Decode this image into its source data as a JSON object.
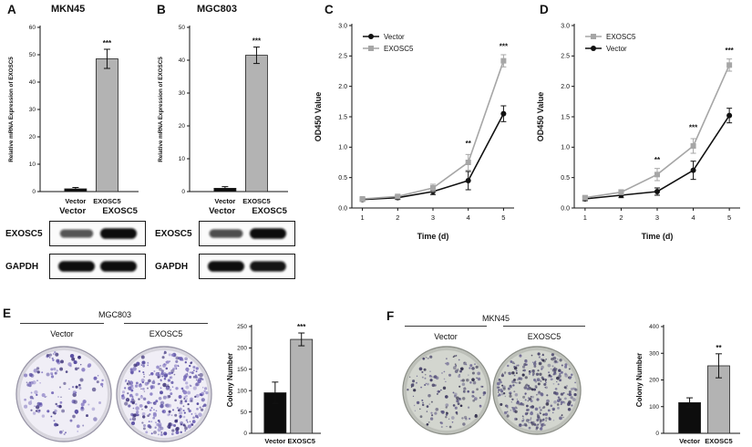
{
  "figure": {
    "panels": {
      "A": {
        "letter": "A",
        "title": "MKN45"
      },
      "B": {
        "letter": "B",
        "title": "MGC803"
      },
      "C": {
        "letter": "C"
      },
      "D": {
        "letter": "D"
      },
      "E": {
        "letter": "E"
      },
      "F": {
        "letter": "F"
      }
    },
    "blots": {
      "lane_labels": [
        "Vector",
        "EXOSC5"
      ],
      "row_labels": [
        "EXOSC5",
        "GAPDH"
      ],
      "bands": {
        "A": [
          [
            0.55,
            1.0
          ],
          [
            1.0,
            1.0
          ]
        ],
        "B": [
          [
            0.6,
            1.0
          ],
          [
            1.0,
            0.95
          ]
        ]
      }
    },
    "colony": {
      "E": {
        "cell_line": "MGC803",
        "dishes": [
          {
            "label": "Vector",
            "dot_count": 130
          },
          {
            "label": "EXOSC5",
            "dot_count": 330
          }
        ],
        "base": "#f0eef6",
        "edge": "#9a97a8",
        "dot_colors": [
          "#5a4fa2",
          "#6f63b5",
          "#43397d",
          "#8d82c6"
        ]
      },
      "F": {
        "cell_line": "MKN45",
        "dishes": [
          {
            "label": "Vector",
            "dot_count": 160
          },
          {
            "label": "EXOSC5",
            "dot_count": 340
          }
        ],
        "base": "#d3d6cf",
        "edge": "#8d9089",
        "dot_colors": [
          "#4a466b",
          "#5a5580",
          "#36334f",
          "#6d6893"
        ]
      }
    }
  },
  "chart_data": [
    {
      "id": "A",
      "type": "bar",
      "title": "MKN45",
      "categories": [
        "Vector",
        "EXOSC5"
      ],
      "values": [
        1,
        48.5
      ],
      "errors": [
        0.5,
        3.5
      ],
      "ylabel": "Relative mRNA Expression of EXOSC5",
      "ylim": [
        0,
        60
      ],
      "yticks": [
        0,
        10,
        20,
        30,
        40,
        50,
        60
      ],
      "bar_colors": [
        "#0d0d0d",
        "#b3b3b3"
      ],
      "significance": {
        "index": 1,
        "text": "***"
      }
    },
    {
      "id": "B",
      "type": "bar",
      "title": "MGC803",
      "categories": [
        "Vector",
        "EXOSC5"
      ],
      "values": [
        1,
        41.5
      ],
      "errors": [
        0.5,
        2.5
      ],
      "ylabel": "Relative mRNA Expression of EXOSC5",
      "ylim": [
        0,
        50
      ],
      "yticks": [
        0,
        10,
        20,
        30,
        40,
        50
      ],
      "bar_colors": [
        "#0d0d0d",
        "#b3b3b3"
      ],
      "significance": {
        "index": 1,
        "text": "***"
      }
    },
    {
      "id": "C",
      "type": "line",
      "x": [
        1,
        2,
        3,
        4,
        5
      ],
      "series": [
        {
          "name": "Vector",
          "color": "#111111",
          "marker": "circle",
          "values": [
            0.14,
            0.17,
            0.27,
            0.45,
            1.55
          ],
          "errors": [
            0.03,
            0.03,
            0.05,
            0.15,
            0.13
          ]
        },
        {
          "name": "EXOSC5",
          "color": "#a6a6a6",
          "marker": "square",
          "values": [
            0.15,
            0.19,
            0.33,
            0.75,
            2.42
          ],
          "errors": [
            0.03,
            0.03,
            0.06,
            0.13,
            0.1
          ]
        }
      ],
      "legend": [
        "Vector",
        "EXOSC5"
      ],
      "annotations": [
        {
          "x": 4,
          "y": 1.02,
          "text": "**"
        },
        {
          "x": 5,
          "y": 2.62,
          "text": "***"
        }
      ],
      "ylabel": "OD450 Value",
      "xlabel": "Time (d)",
      "ylim": [
        0,
        3.0
      ],
      "yticks": [
        0,
        0.5,
        1.0,
        1.5,
        2.0,
        2.5,
        3.0
      ]
    },
    {
      "id": "D",
      "type": "line",
      "x": [
        1,
        2,
        3,
        4,
        5
      ],
      "series": [
        {
          "name": "Vector",
          "color": "#111111",
          "marker": "circle",
          "values": [
            0.15,
            0.21,
            0.27,
            0.62,
            1.52
          ],
          "errors": [
            0.03,
            0.04,
            0.06,
            0.15,
            0.12
          ]
        },
        {
          "name": "EXOSC5",
          "color": "#a6a6a6",
          "marker": "square",
          "values": [
            0.17,
            0.26,
            0.55,
            1.02,
            2.35
          ],
          "errors": [
            0.03,
            0.04,
            0.1,
            0.12,
            0.1
          ]
        }
      ],
      "legend": [
        "EXOSC5",
        "Vector"
      ],
      "annotations": [
        {
          "x": 3,
          "y": 0.75,
          "text": "**"
        },
        {
          "x": 4,
          "y": 1.28,
          "text": "***"
        },
        {
          "x": 5,
          "y": 2.55,
          "text": "***"
        }
      ],
      "ylabel": "OD450 Value",
      "xlabel": "Time (d)",
      "ylim": [
        0,
        3.0
      ],
      "yticks": [
        0,
        0.5,
        1.0,
        1.5,
        2.0,
        2.5,
        3.0
      ]
    },
    {
      "id": "E",
      "type": "bar",
      "categories": [
        "Vector",
        "EXOSC5"
      ],
      "values": [
        95,
        220
      ],
      "errors": [
        25,
        15
      ],
      "ylabel": "Colony Number",
      "ylim": [
        0,
        250
      ],
      "yticks": [
        0,
        50,
        100,
        150,
        200,
        250
      ],
      "bar_colors": [
        "#0d0d0d",
        "#b3b3b3"
      ],
      "significance": {
        "index": 1,
        "text": "***"
      }
    },
    {
      "id": "F",
      "type": "bar",
      "categories": [
        "Vector",
        "EXOSC5"
      ],
      "values": [
        115,
        253
      ],
      "errors": [
        18,
        45
      ],
      "ylabel": "Colony Number",
      "ylim": [
        0,
        400
      ],
      "yticks": [
        0,
        100,
        200,
        300,
        400
      ],
      "bar_colors": [
        "#0d0d0d",
        "#b3b3b3"
      ],
      "significance": {
        "index": 1,
        "text": "**"
      }
    }
  ]
}
